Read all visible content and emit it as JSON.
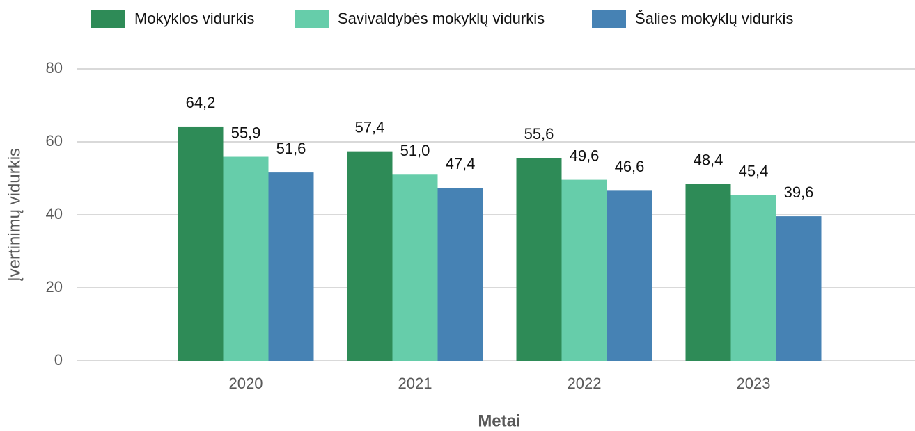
{
  "chart_data": {
    "type": "bar",
    "categories": [
      "2020",
      "2021",
      "2022",
      "2023"
    ],
    "series": [
      {
        "name": "Mokyklos vidurkis",
        "color": "#2e8b57",
        "values": [
          64.2,
          57.4,
          55.6,
          48.4
        ],
        "value_labels": [
          "64,2",
          "57,4",
          "55,6",
          "48,4"
        ]
      },
      {
        "name": "Savivaldybės mokyklų vidurkis",
        "color": "#66cdaa",
        "values": [
          55.9,
          51.0,
          49.6,
          45.4
        ],
        "value_labels": [
          "55,9",
          "51,0",
          "49,6",
          "45,4"
        ]
      },
      {
        "name": "Šalies mokyklų vidurkis",
        "color": "#4682b4",
        "values": [
          51.6,
          47.4,
          46.6,
          39.6
        ],
        "value_labels": [
          "51,6",
          "47,4",
          "46,6",
          "39,6"
        ]
      }
    ],
    "xlabel": "Metai",
    "ylabel": "Įvertinimų vidurkis",
    "ylim": [
      0,
      80
    ],
    "yticks": [
      0,
      20,
      40,
      60,
      80
    ],
    "grid": true,
    "legend": "top"
  }
}
